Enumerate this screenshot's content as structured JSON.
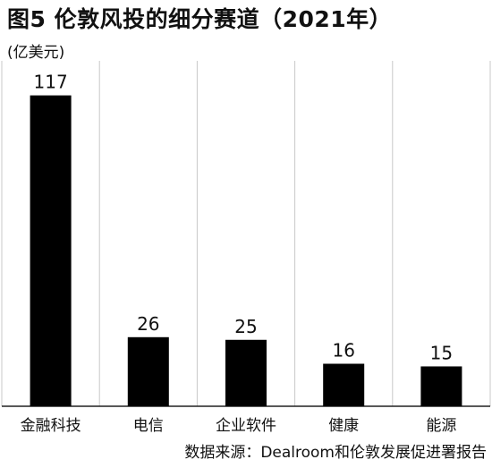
{
  "header": {
    "title": "图5  伦敦风投的细分赛道（2021年）",
    "unit": "(亿美元)"
  },
  "footer": {
    "source": "数据来源：Dealroom和伦敦发展促进署报告"
  },
  "colors": {
    "bar": "#000000",
    "grid": "#c8c8c8",
    "axis": "#222222"
  },
  "chart_data": {
    "type": "bar",
    "title": "图5  伦敦风投的细分赛道（2021年）",
    "ylabel": "(亿美元)",
    "xlabel": "",
    "categories": [
      "金融科技",
      "电信",
      "企业软件",
      "健康",
      "能源"
    ],
    "values": [
      117,
      26,
      25,
      16,
      15
    ],
    "ylim": [
      0,
      130
    ],
    "grid": "vertical",
    "legend": "none"
  }
}
